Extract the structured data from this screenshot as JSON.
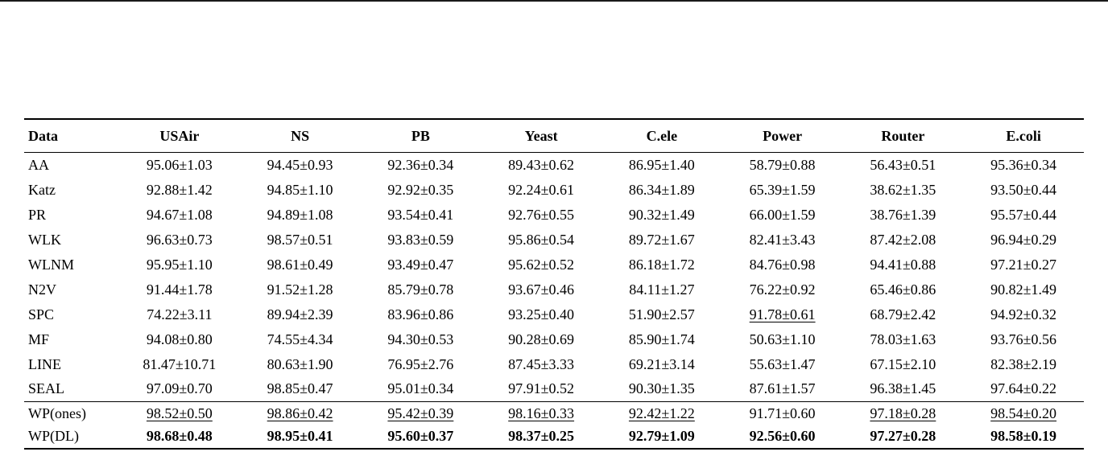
{
  "page": {
    "background": "#ffffff",
    "text_color": "#000000",
    "rule_color": "#000000"
  },
  "chart_data": {
    "type": "table",
    "title": "",
    "columns": [
      "Data",
      "USAir",
      "NS",
      "PB",
      "Yeast",
      "C.ele",
      "Power",
      "Router",
      "E.coli"
    ],
    "rows": [
      {
        "label": "AA",
        "values": [
          "95.06±1.03",
          "94.45±0.93",
          "92.36±0.34",
          "89.43±0.62",
          "86.95±1.40",
          "58.79±0.88",
          "56.43±0.51",
          "95.36±0.34"
        ],
        "underline": [],
        "bold": false,
        "section_start": false
      },
      {
        "label": "Katz",
        "values": [
          "92.88±1.42",
          "94.85±1.10",
          "92.92±0.35",
          "92.24±0.61",
          "86.34±1.89",
          "65.39±1.59",
          "38.62±1.35",
          "93.50±0.44"
        ],
        "underline": [],
        "bold": false,
        "section_start": false
      },
      {
        "label": "PR",
        "values": [
          "94.67±1.08",
          "94.89±1.08",
          "93.54±0.41",
          "92.76±0.55",
          "90.32±1.49",
          "66.00±1.59",
          "38.76±1.39",
          "95.57±0.44"
        ],
        "underline": [],
        "bold": false,
        "section_start": false
      },
      {
        "label": "WLK",
        "values": [
          "96.63±0.73",
          "98.57±0.51",
          "93.83±0.59",
          "95.86±0.54",
          "89.72±1.67",
          "82.41±3.43",
          "87.42±2.08",
          "96.94±0.29"
        ],
        "underline": [],
        "bold": false,
        "section_start": false
      },
      {
        "label": "WLNM",
        "values": [
          "95.95±1.10",
          "98.61±0.49",
          "93.49±0.47",
          "95.62±0.52",
          "86.18±1.72",
          "84.76±0.98",
          "94.41±0.88",
          "97.21±0.27"
        ],
        "underline": [],
        "bold": false,
        "section_start": false
      },
      {
        "label": "N2V",
        "values": [
          "91.44±1.78",
          "91.52±1.28",
          "85.79±0.78",
          "93.67±0.46",
          "84.11±1.27",
          "76.22±0.92",
          "65.46±0.86",
          "90.82±1.49"
        ],
        "underline": [],
        "bold": false,
        "section_start": false
      },
      {
        "label": "SPC",
        "values": [
          "74.22±3.11",
          "89.94±2.39",
          "83.96±0.86",
          "93.25±0.40",
          "51.90±2.57",
          "91.78±0.61",
          "68.79±2.42",
          "94.92±0.32"
        ],
        "underline": [
          5
        ],
        "bold": false,
        "section_start": false
      },
      {
        "label": "MF",
        "values": [
          "94.08±0.80",
          "74.55±4.34",
          "94.30±0.53",
          "90.28±0.69",
          "85.90±1.74",
          "50.63±1.10",
          "78.03±1.63",
          "93.76±0.56"
        ],
        "underline": [],
        "bold": false,
        "section_start": false
      },
      {
        "label": "LINE",
        "values": [
          "81.47±10.71",
          "80.63±1.90",
          "76.95±2.76",
          "87.45±3.33",
          "69.21±3.14",
          "55.63±1.47",
          "67.15±2.10",
          "82.38±2.19"
        ],
        "underline": [],
        "bold": false,
        "section_start": false
      },
      {
        "label": "SEAL",
        "values": [
          "97.09±0.70",
          "98.85±0.47",
          "95.01±0.34",
          "97.91±0.52",
          "90.30±1.35",
          "87.61±1.57",
          "96.38±1.45",
          "97.64±0.22"
        ],
        "underline": [],
        "bold": false,
        "section_start": false
      },
      {
        "label": "WP(ones)",
        "values": [
          "98.52±0.50",
          "98.86±0.42",
          "95.42±0.39",
          "98.16±0.33",
          "92.42±1.22",
          "91.71±0.60",
          "97.18±0.28",
          "98.54±0.20"
        ],
        "underline": [
          0,
          1,
          2,
          3,
          4,
          6,
          7
        ],
        "bold": false,
        "section_start": true
      },
      {
        "label": "WP(DL)",
        "values": [
          "98.68±0.48",
          "98.95±0.41",
          "95.60±0.37",
          "98.37±0.25",
          "92.79±1.09",
          "92.56±0.60",
          "97.27±0.28",
          "98.58±0.19"
        ],
        "underline": [],
        "bold": true,
        "section_start": false
      }
    ]
  }
}
